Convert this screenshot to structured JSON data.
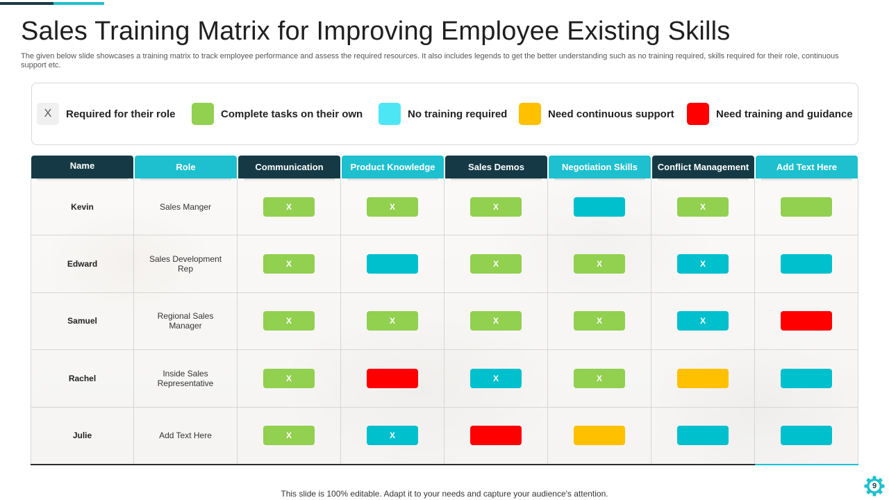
{
  "slide": {
    "title": "Sales Training Matrix for Improving Employee Existing Skills",
    "subtitle": "The given below slide showcases a training matrix to track employee performance and assess the required resources. It also includes legends to get the better understanding such as no training required, skills required for their role,  continuous support etc.",
    "footer": "This slide is 100% editable. Adapt it to your needs and capture your audience's attention.",
    "page_number": "9"
  },
  "colors": {
    "dark": "#163a45",
    "teal": "#1ec0cf",
    "green": "#92d050",
    "cyan": "#00c0cd",
    "light_cyan": "#4de6f5",
    "amber": "#ffc000",
    "red": "#ff0000"
  },
  "legend": [
    {
      "key": "x",
      "swatch_text": "X",
      "label": "Required for their role"
    },
    {
      "key": "green",
      "swatch_text": "",
      "label": "Complete tasks on their own"
    },
    {
      "key": "cyan",
      "swatch_text": "",
      "label": "No training required"
    },
    {
      "key": "amber",
      "swatch_text": "",
      "label": "Need continuous support"
    },
    {
      "key": "red",
      "swatch_text": "",
      "label": "Need training and guidance"
    }
  ],
  "table": {
    "headers": [
      "Name",
      "Role",
      "Communication",
      "Product Knowledge",
      "Sales Demos",
      "Negotiation Skills",
      "Conflict Management",
      "Add Text Here"
    ],
    "rows": [
      {
        "name": "Kevin",
        "role": "Sales Manger",
        "cells": [
          {
            "color": "green",
            "mark": "X"
          },
          {
            "color": "green",
            "mark": "X"
          },
          {
            "color": "green",
            "mark": "X"
          },
          {
            "color": "cyan",
            "mark": ""
          },
          {
            "color": "green",
            "mark": "X"
          },
          {
            "color": "green",
            "mark": ""
          }
        ]
      },
      {
        "name": "Edward",
        "role": "Sales Development Rep",
        "cells": [
          {
            "color": "green",
            "mark": "X"
          },
          {
            "color": "cyan",
            "mark": ""
          },
          {
            "color": "green",
            "mark": "X"
          },
          {
            "color": "green",
            "mark": "X"
          },
          {
            "color": "cyan",
            "mark": "X"
          },
          {
            "color": "cyan",
            "mark": ""
          }
        ]
      },
      {
        "name": "Samuel",
        "role": "Regional Sales Manager",
        "cells": [
          {
            "color": "green",
            "mark": "X"
          },
          {
            "color": "green",
            "mark": "X"
          },
          {
            "color": "green",
            "mark": "X"
          },
          {
            "color": "green",
            "mark": "X"
          },
          {
            "color": "cyan",
            "mark": "X"
          },
          {
            "color": "red",
            "mark": ""
          }
        ]
      },
      {
        "name": "Rachel",
        "role": "Inside Sales Representative",
        "cells": [
          {
            "color": "green",
            "mark": "X"
          },
          {
            "color": "red",
            "mark": ""
          },
          {
            "color": "cyan",
            "mark": "X"
          },
          {
            "color": "green",
            "mark": "X"
          },
          {
            "color": "amber",
            "mark": ""
          },
          {
            "color": "cyan",
            "mark": ""
          }
        ]
      },
      {
        "name": "Julie",
        "role": "Add Text Here",
        "cells": [
          {
            "color": "green",
            "mark": "X"
          },
          {
            "color": "cyan",
            "mark": "X"
          },
          {
            "color": "red",
            "mark": ""
          },
          {
            "color": "amber",
            "mark": ""
          },
          {
            "color": "cyan",
            "mark": ""
          },
          {
            "color": "cyan",
            "mark": ""
          }
        ]
      }
    ]
  }
}
